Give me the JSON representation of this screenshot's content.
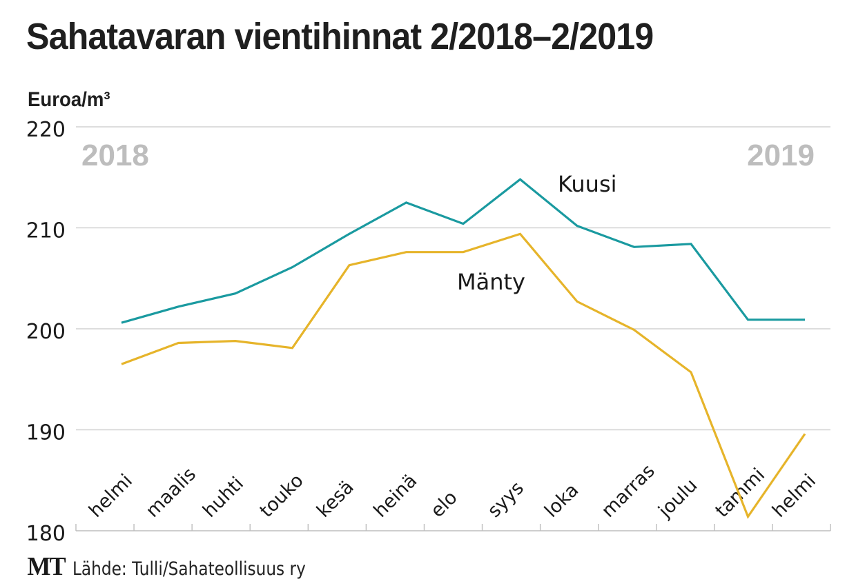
{
  "chart_data": {
    "type": "line",
    "title": "Sahatavaran vientihinnat 2/2018–2/2019",
    "ylabel": "Euroa/m³",
    "xlabel": "",
    "ylim": [
      180,
      220
    ],
    "yticks": [
      "180",
      "190",
      "200",
      "210",
      "220"
    ],
    "grid": true,
    "year_labels": {
      "start": "2018",
      "end": "2019"
    },
    "categories": [
      "helmi",
      "maalis",
      "huhti",
      "touko",
      "kesä",
      "heinä",
      "elo",
      "syys",
      "loka",
      "marras",
      "joulu",
      "tammi",
      "helmi"
    ],
    "series": [
      {
        "name": "Kuusi",
        "color": "#1a9aa0",
        "values": [
          200.6,
          202.2,
          203.5,
          206.1,
          209.4,
          212.5,
          210.4,
          214.8,
          210.2,
          208.1,
          208.4,
          200.9,
          200.9
        ]
      },
      {
        "name": "Mänty",
        "color": "#e6b42a",
        "values": [
          196.5,
          198.6,
          198.8,
          198.1,
          206.3,
          207.6,
          207.6,
          209.4,
          202.7,
          199.9,
          195.7,
          181.4,
          189.6
        ]
      }
    ]
  },
  "footer": {
    "logo": "MT",
    "source": "Lähde: Tulli/Sahateollisuus ry"
  }
}
